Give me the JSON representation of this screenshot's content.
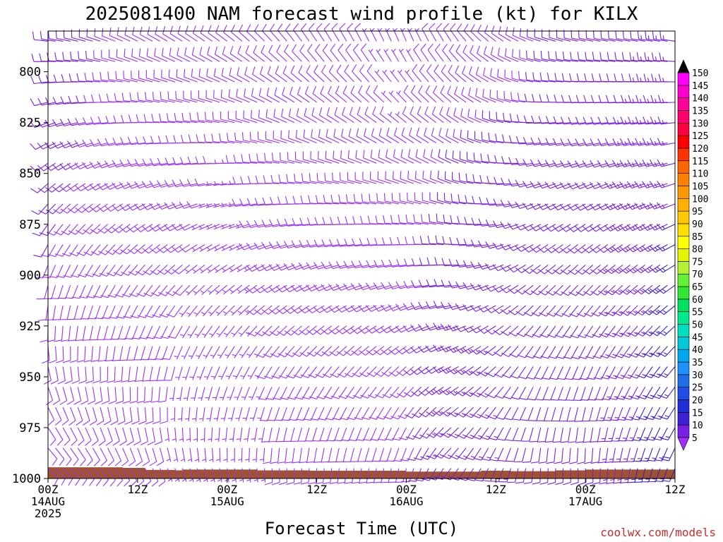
{
  "chart_data": {
    "type": "wind-barb time-height profile",
    "title": "2025081400 NAM forecast wind profile (kt) for KILX",
    "xlabel": "Forecast Time (UTC)",
    "credit": "coolwx.com/models",
    "units": "kt",
    "y_axis": {
      "quantity": "pressure (mb)",
      "range": [
        1000,
        780
      ],
      "ticks": [
        "800",
        "825",
        "850",
        "875",
        "900",
        "925",
        "950",
        "975",
        "1000"
      ]
    },
    "x_axis": {
      "range_hours": [
        0,
        84
      ],
      "step_hours": 1,
      "ticks": [
        {
          "hour": 0,
          "line1": "00Z",
          "line2": "14AUG",
          "line3": "2025"
        },
        {
          "hour": 12,
          "line1": "12Z",
          "line2": "",
          "line3": ""
        },
        {
          "hour": 24,
          "line1": "00Z",
          "line2": "15AUG",
          "line3": ""
        },
        {
          "hour": 36,
          "line1": "12Z",
          "line2": "",
          "line3": ""
        },
        {
          "hour": 48,
          "line1": "00Z",
          "line2": "16AUG",
          "line3": ""
        },
        {
          "hour": 60,
          "line1": "12Z",
          "line2": "",
          "line3": ""
        },
        {
          "hour": 72,
          "line1": "00Z",
          "line2": "17AUG",
          "line3": ""
        },
        {
          "hour": 84,
          "line1": "12Z",
          "line2": "",
          "line3": ""
        }
      ]
    },
    "barb_levels_mb": [
      785,
      795,
      805,
      815,
      825,
      835,
      845,
      855,
      865,
      875,
      885,
      895,
      905,
      915,
      925,
      935,
      945,
      955,
      965,
      975,
      985,
      995
    ],
    "wind_keyframes": [
      {
        "hour": 0,
        "dir_low": 130,
        "dir_high": 280,
        "spd_low": 8,
        "spd_high": 12
      },
      {
        "hour": 12,
        "dir_low": 150,
        "dir_high": 300,
        "spd_low": 8,
        "spd_high": 9
      },
      {
        "hour": 24,
        "dir_low": 170,
        "dir_high": 310,
        "spd_low": 6,
        "spd_high": 8
      },
      {
        "hour": 36,
        "dir_low": 180,
        "dir_high": 330,
        "spd_low": 9,
        "spd_high": 8
      },
      {
        "hour": 48,
        "dir_low": 190,
        "dir_high": 340,
        "spd_low": 9,
        "spd_high": 7
      },
      {
        "hour": 54,
        "dir_low": 215,
        "dir_high": 330,
        "spd_low": 15,
        "spd_high": 8
      },
      {
        "hour": 60,
        "dir_low": 200,
        "dir_high": 310,
        "spd_low": 14,
        "spd_high": 9
      },
      {
        "hour": 66,
        "dir_low": 180,
        "dir_high": 290,
        "spd_low": 10,
        "spd_high": 10
      },
      {
        "hour": 72,
        "dir_low": 175,
        "dir_high": 285,
        "spd_low": 11,
        "spd_high": 11
      },
      {
        "hour": 84,
        "dir_low": 200,
        "dir_high": 280,
        "spd_low": 18,
        "spd_high": 13
      }
    ],
    "surface_pressure_mb": [
      {
        "hour": 0,
        "mb": 994.5
      },
      {
        "hour": 4,
        "mb": 994.5
      },
      {
        "hour": 10,
        "mb": 994.8
      },
      {
        "hour": 13,
        "mb": 995.8
      },
      {
        "hour": 17,
        "mb": 996.0
      },
      {
        "hour": 18,
        "mb": 995.6
      },
      {
        "hour": 24,
        "mb": 995.6
      },
      {
        "hour": 27,
        "mb": 995.6
      },
      {
        "hour": 28,
        "mb": 996.0
      },
      {
        "hour": 34,
        "mb": 996.0
      },
      {
        "hour": 35,
        "mb": 996.2
      },
      {
        "hour": 48,
        "mb": 996.6
      },
      {
        "hour": 54,
        "mb": 996.6
      },
      {
        "hour": 58,
        "mb": 996.2
      },
      {
        "hour": 62,
        "mb": 996.4
      },
      {
        "hour": 68,
        "mb": 996.0
      },
      {
        "hour": 72,
        "mb": 995.6
      },
      {
        "hour": 80,
        "mb": 995.6
      },
      {
        "hour": 84,
        "mb": 995.6
      }
    ],
    "surface_color": "#a0522d",
    "colorbar": {
      "labels": [
        "5",
        "10",
        "15",
        "20",
        "25",
        "30",
        "35",
        "40",
        "45",
        "50",
        "55",
        "60",
        "65",
        "70",
        "75",
        "80",
        "85",
        "90",
        "95",
        "100",
        "105",
        "110",
        "115",
        "120",
        "125",
        "130",
        "135",
        "140",
        "145",
        "150"
      ],
      "colors": [
        "#9b30ff",
        "#7a1fe6",
        "#3d1fd6",
        "#1f2ed6",
        "#1f4fe6",
        "#1e6fe6",
        "#1e90ff",
        "#00a8f0",
        "#00c8d8",
        "#00e0c0",
        "#00e890",
        "#00e060",
        "#33e633",
        "#66f033",
        "#b3f233",
        "#e6f500",
        "#ffff00",
        "#ffe000",
        "#ffc800",
        "#ffb000",
        "#ff9900",
        "#ff8000",
        "#ff6600",
        "#ff3300",
        "#ff0000",
        "#ff0040",
        "#ff0070",
        "#ff0099",
        "#ff00cc",
        "#ff00ff"
      ],
      "tri_bottom": "#9b30ff",
      "tri_top": "#000000"
    }
  }
}
